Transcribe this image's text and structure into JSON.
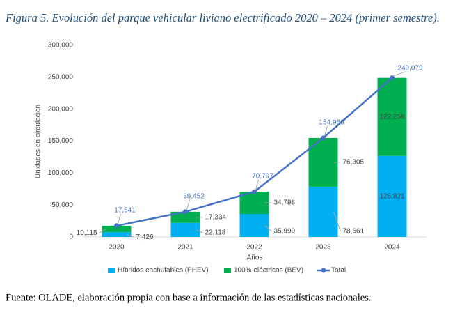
{
  "chart_data": {
    "type": "bar",
    "stacked": true,
    "title": "Figura 5. Evolución del parque vehicular liviano electrificado 2020 – 2024 (primer semestre).",
    "x_label": "Años",
    "y_label": "Unidades en circulación",
    "categories": [
      "2020",
      "2021",
      "2022",
      "2023",
      "2024"
    ],
    "series": [
      {
        "name": "Híbridos enchufables (PHEV)",
        "type": "bar",
        "color": "#00b0f0",
        "values": [
          7426,
          22118,
          35999,
          78661,
          126821
        ],
        "value_labels": [
          "7,426",
          "22,118",
          "35,999",
          "78,661",
          "126,821"
        ]
      },
      {
        "name": "100% eléctricos (BEV)",
        "type": "bar",
        "color": "#00b050",
        "values": [
          10115,
          17334,
          34798,
          76305,
          122258
        ],
        "value_labels": [
          "10,115",
          "17,334",
          "34,798",
          "76,305",
          "122,258"
        ]
      },
      {
        "name": "Total",
        "type": "line",
        "color": "#4472c4",
        "values": [
          17541,
          39452,
          70797,
          154966,
          249079
        ],
        "value_labels": [
          "17,541",
          "39,452",
          "70,797",
          "154,966",
          "249,079"
        ]
      }
    ],
    "ylim": [
      0,
      300000
    ],
    "yticks": [
      0,
      {
        "value": 50000,
        "label": "50,000"
      },
      {
        "value": 100000,
        "label": "100,000"
      },
      {
        "value": 150000,
        "label": "150,000"
      },
      {
        "value": 200000,
        "label": "200,000"
      },
      {
        "value": 250000,
        "label": "250,000"
      },
      {
        "value": 300000,
        "label": "300,000"
      }
    ],
    "grid": false,
    "source": "Fuente: OLADE, elaboración propia con base a información de las estadísticas nacionales."
  }
}
